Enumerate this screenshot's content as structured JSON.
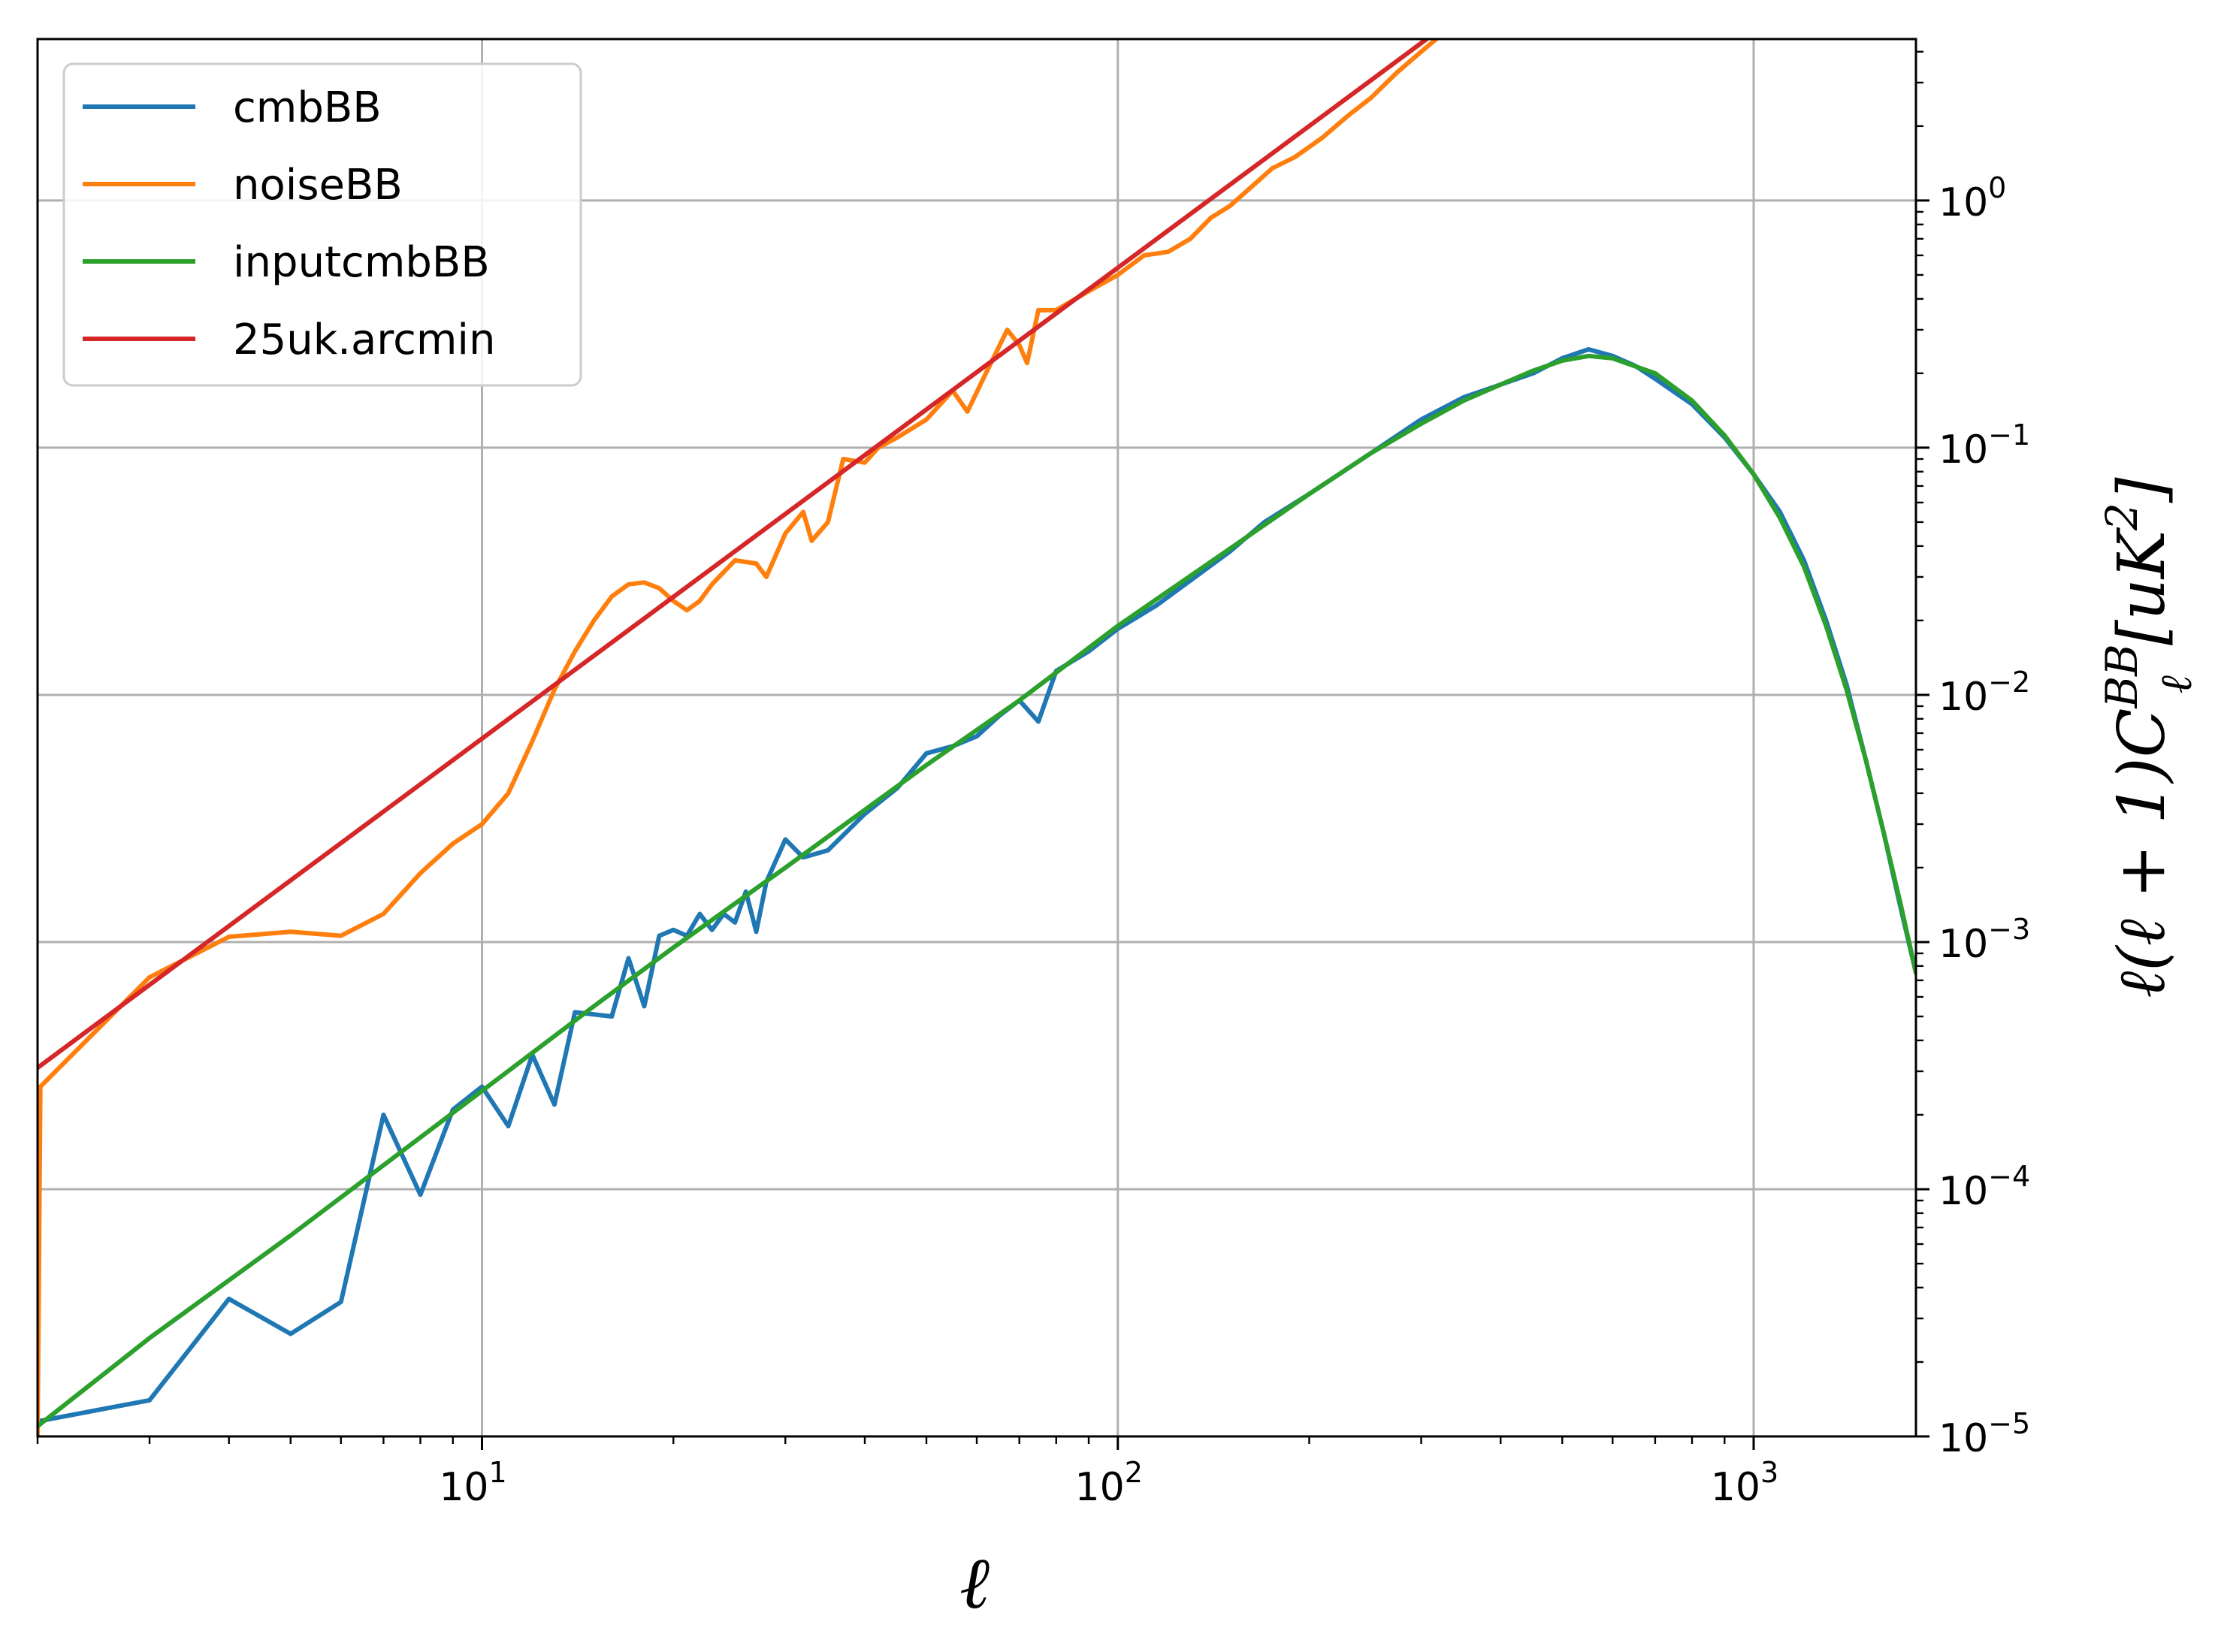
{
  "chart_data": {
    "type": "line",
    "xlabel": "ℓ",
    "ylabel": "ℓ(ℓ + 1)C_ℓ^BB[uK²]",
    "ylabel_parts": {
      "pre": "ℓ(ℓ + 1)C",
      "sup": "BB",
      "sub": "ℓ",
      "post": "[uK",
      "sup2": "2",
      "close": "]"
    },
    "xscale": "log",
    "yscale": "log",
    "xlim": [
      2,
      1800
    ],
    "ylim": [
      1e-05,
      4.5
    ],
    "grid": true,
    "legend_position": "top-left",
    "yaxis_side": "right",
    "x_ticks": [
      {
        "value": 10,
        "base": "10",
        "exp": "1"
      },
      {
        "value": 100,
        "base": "10",
        "exp": "2"
      },
      {
        "value": 1000,
        "base": "10",
        "exp": "3"
      }
    ],
    "y_ticks": [
      {
        "value": 1e-05,
        "base": "10",
        "exp": "−5"
      },
      {
        "value": 0.0001,
        "base": "10",
        "exp": "−4"
      },
      {
        "value": 0.001,
        "base": "10",
        "exp": "−3"
      },
      {
        "value": 0.01,
        "base": "10",
        "exp": "−2"
      },
      {
        "value": 0.1,
        "base": "10",
        "exp": "−1"
      },
      {
        "value": 1,
        "base": "10",
        "exp": "0"
      }
    ],
    "series": [
      {
        "name": "cmbBB",
        "color": "#1f77b4",
        "points": [
          [
            2,
            1.15e-05
          ],
          [
            3,
            1.4e-05
          ],
          [
            4,
            3.6e-05
          ],
          [
            5,
            2.6e-05
          ],
          [
            6,
            3.5e-05
          ],
          [
            7,
            0.0002
          ],
          [
            8,
            9.5e-05
          ],
          [
            9,
            0.00021
          ],
          [
            10,
            0.00026
          ],
          [
            11,
            0.00018
          ],
          [
            12,
            0.00035
          ],
          [
            13,
            0.00022
          ],
          [
            14,
            0.00052
          ],
          [
            16,
            0.0005
          ],
          [
            17,
            0.00086
          ],
          [
            18,
            0.00055
          ],
          [
            19,
            0.00106
          ],
          [
            20,
            0.00112
          ],
          [
            21,
            0.00106
          ],
          [
            22,
            0.0013
          ],
          [
            23,
            0.00112
          ],
          [
            24,
            0.0013
          ],
          [
            25,
            0.0012
          ],
          [
            26,
            0.0016
          ],
          [
            27,
            0.0011
          ],
          [
            28,
            0.00175
          ],
          [
            30,
            0.0026
          ],
          [
            32,
            0.0022
          ],
          [
            35,
            0.00235
          ],
          [
            40,
            0.0033
          ],
          [
            45,
            0.0042
          ],
          [
            50,
            0.0058
          ],
          [
            55,
            0.0062
          ],
          [
            60,
            0.0068
          ],
          [
            65,
            0.0082
          ],
          [
            70,
            0.0095
          ],
          [
            75,
            0.0078
          ],
          [
            80,
            0.0125
          ],
          [
            90,
            0.015
          ],
          [
            100,
            0.0185
          ],
          [
            115,
            0.023
          ],
          [
            130,
            0.029
          ],
          [
            150,
            0.038
          ],
          [
            170,
            0.05
          ],
          [
            200,
            0.065
          ],
          [
            250,
            0.095
          ],
          [
            300,
            0.13
          ],
          [
            350,
            0.16
          ],
          [
            400,
            0.18
          ],
          [
            450,
            0.2
          ],
          [
            500,
            0.23
          ],
          [
            550,
            0.25
          ],
          [
            600,
            0.235
          ],
          [
            650,
            0.215
          ],
          [
            700,
            0.19
          ],
          [
            800,
            0.15
          ],
          [
            900,
            0.11
          ],
          [
            1000,
            0.078
          ],
          [
            1100,
            0.055
          ],
          [
            1200,
            0.035
          ],
          [
            1300,
            0.02
          ],
          [
            1400,
            0.011
          ],
          [
            1500,
            0.0055
          ],
          [
            1600,
            0.0028
          ],
          [
            1700,
            0.0014
          ],
          [
            1800,
            0.00075
          ]
        ]
      },
      {
        "name": "noiseBB",
        "color": "#ff7f0e",
        "points": [
          [
            2,
            1e-05
          ],
          [
            2.02,
            0.00026
          ],
          [
            3,
            0.00072
          ],
          [
            4,
            0.00105
          ],
          [
            5,
            0.0011
          ],
          [
            6,
            0.00106
          ],
          [
            7,
            0.0013
          ],
          [
            8,
            0.0019
          ],
          [
            9,
            0.0025
          ],
          [
            10,
            0.003
          ],
          [
            11,
            0.004
          ],
          [
            12,
            0.0065
          ],
          [
            13,
            0.0105
          ],
          [
            14,
            0.015
          ],
          [
            15,
            0.02
          ],
          [
            16,
            0.025
          ],
          [
            17,
            0.028
          ],
          [
            18,
            0.0285
          ],
          [
            19,
            0.027
          ],
          [
            20,
            0.024
          ],
          [
            21,
            0.022
          ],
          [
            22,
            0.024
          ],
          [
            23,
            0.028
          ],
          [
            25,
            0.035
          ],
          [
            27,
            0.034
          ],
          [
            28,
            0.03
          ],
          [
            30,
            0.045
          ],
          [
            32,
            0.055
          ],
          [
            33,
            0.042
          ],
          [
            35,
            0.05
          ],
          [
            37,
            0.09
          ],
          [
            40,
            0.087
          ],
          [
            42,
            0.1
          ],
          [
            45,
            0.11
          ],
          [
            50,
            0.13
          ],
          [
            55,
            0.17
          ],
          [
            58,
            0.14
          ],
          [
            62,
            0.2
          ],
          [
            67,
            0.3
          ],
          [
            70,
            0.26
          ],
          [
            72,
            0.22
          ],
          [
            75,
            0.36
          ],
          [
            80,
            0.36
          ],
          [
            90,
            0.43
          ],
          [
            100,
            0.5
          ],
          [
            110,
            0.6
          ],
          [
            120,
            0.62
          ],
          [
            130,
            0.7
          ],
          [
            140,
            0.85
          ],
          [
            150,
            0.95
          ],
          [
            160,
            1.1
          ],
          [
            175,
            1.35
          ],
          [
            190,
            1.5
          ],
          [
            210,
            1.8
          ],
          [
            230,
            2.2
          ],
          [
            250,
            2.6
          ],
          [
            275,
            3.3
          ],
          [
            300,
            4.0
          ],
          [
            320,
            4.6
          ]
        ]
      },
      {
        "name": "inputcmbBB",
        "color": "#2ca02c",
        "points": [
          [
            2,
            1.1e-05
          ],
          [
            3,
            2.5e-05
          ],
          [
            5,
            6.5e-05
          ],
          [
            7,
            0.000125
          ],
          [
            10,
            0.00025
          ],
          [
            15,
            0.00055
          ],
          [
            20,
            0.00095
          ],
          [
            30,
            0.002
          ],
          [
            50,
            0.0052
          ],
          [
            70,
            0.0095
          ],
          [
            100,
            0.019
          ],
          [
            150,
            0.039
          ],
          [
            200,
            0.065
          ],
          [
            250,
            0.095
          ],
          [
            300,
            0.125
          ],
          [
            350,
            0.155
          ],
          [
            400,
            0.18
          ],
          [
            450,
            0.205
          ],
          [
            500,
            0.225
          ],
          [
            550,
            0.235
          ],
          [
            600,
            0.23
          ],
          [
            700,
            0.2
          ],
          [
            800,
            0.155
          ],
          [
            900,
            0.112
          ],
          [
            1000,
            0.078
          ],
          [
            1100,
            0.052
          ],
          [
            1200,
            0.033
          ],
          [
            1300,
            0.019
          ],
          [
            1400,
            0.0105
          ],
          [
            1500,
            0.0055
          ],
          [
            1600,
            0.0028
          ],
          [
            1700,
            0.00145
          ],
          [
            1800,
            0.00075
          ]
        ]
      },
      {
        "name": "25uk.arcmin",
        "color": "#d62728",
        "points": [
          [
            2,
            0.00031
          ],
          [
            320,
            4.9
          ]
        ]
      }
    ]
  }
}
